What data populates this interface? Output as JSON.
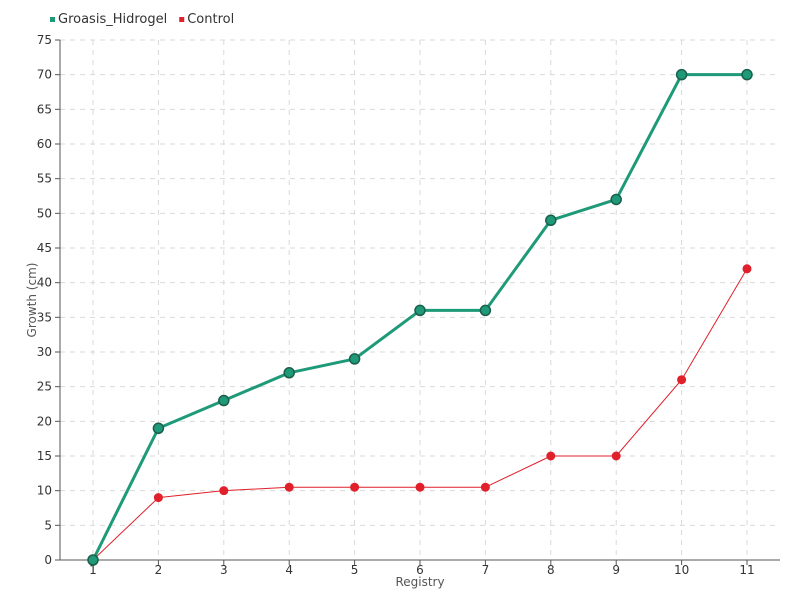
{
  "chart_data": {
    "type": "line",
    "title": "",
    "xlabel": "Registry",
    "ylabel": "Growth (cm)",
    "categories": [
      "1",
      "2",
      "3",
      "4",
      "5",
      "6",
      "7",
      "8",
      "9",
      "10",
      "11"
    ],
    "ylim": [
      0,
      75
    ],
    "yticks": [
      0,
      5,
      10,
      15,
      20,
      25,
      30,
      35,
      40,
      45,
      50,
      55,
      60,
      65,
      70,
      75
    ],
    "grid": true,
    "legend_position": "top-left",
    "series": [
      {
        "name": "Groasis_Hidrogel",
        "color": "#1e9a78",
        "values": [
          0,
          19,
          23,
          27,
          29,
          36,
          36,
          49,
          52,
          70,
          70
        ]
      },
      {
        "name": "Control",
        "color": "#e0202a",
        "values": [
          0,
          9,
          10,
          10.5,
          10.5,
          10.5,
          10.5,
          15,
          15,
          26,
          42
        ]
      }
    ]
  }
}
